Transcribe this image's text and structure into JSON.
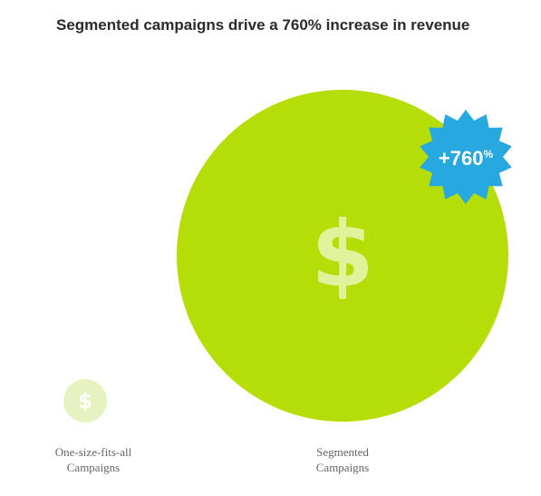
{
  "chart_data": {
    "type": "bubble",
    "title": "Segmented campaigns drive a 760% increase in revenue",
    "categories": [
      "One-size-fits-all Campaigns",
      "Segmented Campaigns"
    ],
    "category_label_lines": [
      [
        "One-size-fits-all",
        "Campaigns"
      ],
      [
        "Segmented",
        "Campaigns"
      ]
    ],
    "values": [
      1,
      8.6
    ],
    "symbol": "$",
    "callout": {
      "value": "+760",
      "unit": "%",
      "target": "Segmented Campaigns"
    }
  },
  "colors": {
    "main_bubble": "#b5dd08",
    "small_bubble": "#e6f2c0",
    "dollar_on_main": "#e2f29a",
    "dollar_on_small": "#ffffff",
    "badge": "#27a8df",
    "title": "#2b2b2b",
    "label": "#666666"
  },
  "icons": {
    "bubble_symbol": "dollar-icon",
    "badge_shape": "starburst-badge"
  }
}
